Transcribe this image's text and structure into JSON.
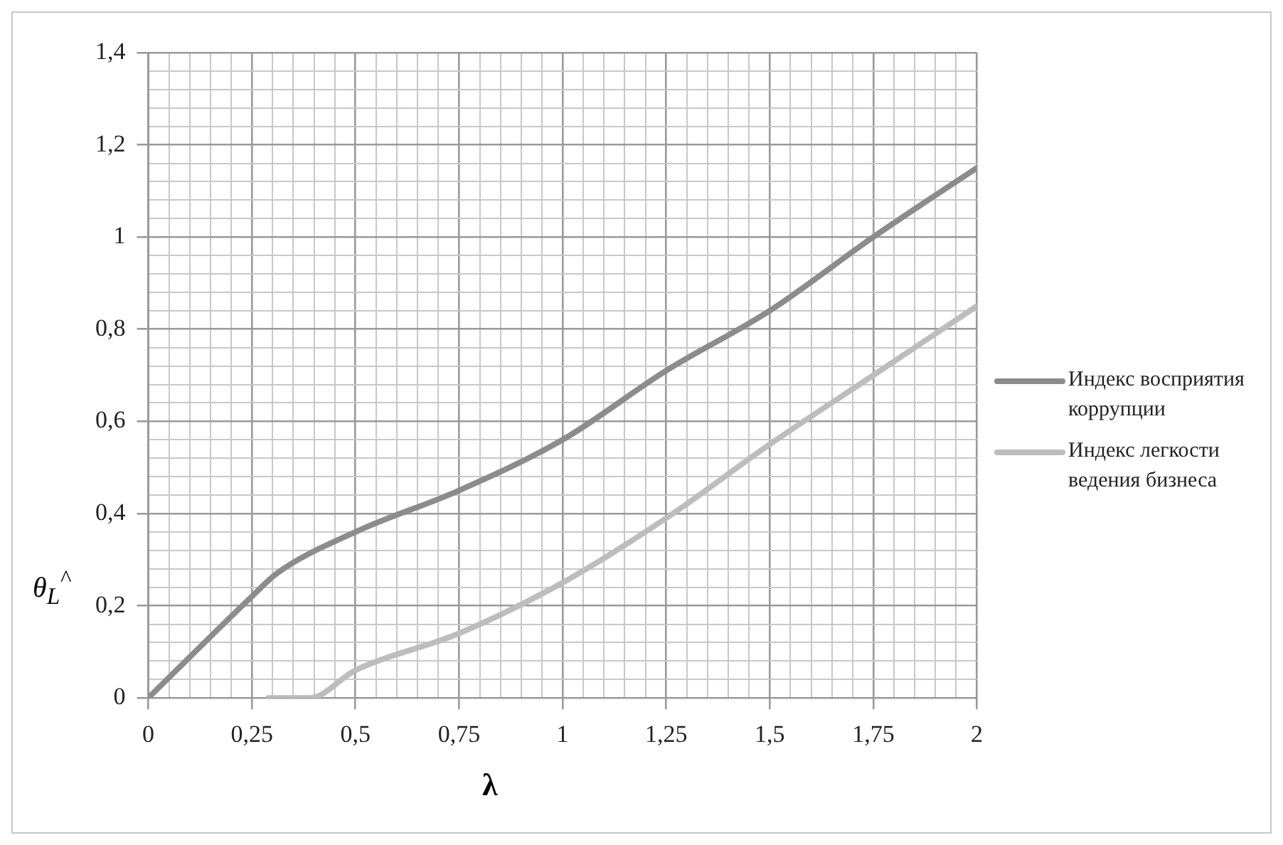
{
  "chart_data": {
    "type": "line",
    "xlabel": "λ",
    "ylabel": "θ$_{L}$$^{^}$",
    "xlim": [
      0,
      2
    ],
    "ylim": [
      0,
      1.4
    ],
    "xticks": [
      0,
      {
        "value": 0.05,
        "label": null
      },
      {
        "value": 0.1,
        "label": null
      },
      {
        "value": 0.15,
        "label": null
      },
      {
        "value": 0.2,
        "label": null
      },
      {
        "value": 0.25,
        "label": "0,25"
      },
      {
        "value": 0.3,
        "label": null
      },
      {
        "value": 0.35,
        "label": null
      },
      {
        "value": 0.4,
        "label": null
      },
      {
        "value": 0.45,
        "label": null
      },
      {
        "value": 0.5,
        "label": "0,5"
      },
      {
        "value": 0.55,
        "label": null
      },
      {
        "value": 0.6,
        "label": null
      },
      {
        "value": 0.65,
        "label": null
      },
      {
        "value": 0.7,
        "label": null
      },
      {
        "value": 0.75,
        "label": "0,75"
      },
      {
        "value": 0.8,
        "label": null
      },
      {
        "value": 0.85,
        "label": null
      },
      {
        "value": 0.9,
        "label": null
      },
      {
        "value": 0.95,
        "label": null
      },
      1,
      {
        "value": 1.05,
        "label": null
      },
      {
        "value": 1.1,
        "label": null
      },
      {
        "value": 1.15,
        "label": null
      },
      {
        "value": 1.2,
        "label": null
      },
      {
        "value": 1.25,
        "label": "1,25"
      },
      {
        "value": 1.3,
        "label": null
      },
      {
        "value": 1.35,
        "label": null
      },
      {
        "value": 1.4,
        "label": null
      },
      {
        "value": 1.45,
        "label": null
      },
      {
        "value": 1.5,
        "label": "1,5"
      },
      {
        "value": 1.55,
        "label": null
      },
      {
        "value": 1.6,
        "label": null
      },
      {
        "value": 1.65,
        "label": null
      },
      {
        "value": 1.7,
        "label": null
      },
      {
        "value": 1.75,
        "label": "1,75"
      },
      {
        "value": 1.8,
        "label": null
      },
      {
        "value": 1.85,
        "label": null
      },
      {
        "value": 1.9,
        "label": null
      },
      {
        "value": 1.95,
        "label": null
      },
      2
    ],
    "yticks": [
      0,
      {
        "value": 0.04,
        "label": null
      },
      {
        "value": 0.08,
        "label": null
      },
      {
        "value": 0.12,
        "label": null
      },
      {
        "value": 0.16,
        "label": null
      },
      {
        "value": 0.2,
        "label": "0,2"
      },
      {
        "value": 0.24,
        "label": null
      },
      {
        "value": 0.28,
        "label": null
      },
      {
        "value": 0.32,
        "label": null
      },
      {
        "value": 0.36,
        "label": null
      },
      {
        "value": 0.4,
        "label": "0,4"
      },
      {
        "value": 0.44,
        "label": null
      },
      {
        "value": 0.48,
        "label": null
      },
      {
        "value": 0.52,
        "label": null
      },
      {
        "value": 0.56,
        "label": null
      },
      {
        "value": 0.6,
        "label": "0,6"
      },
      {
        "value": 0.64,
        "label": null
      },
      {
        "value": 0.68,
        "label": null
      },
      {
        "value": 0.72,
        "label": null
      },
      {
        "value": 0.76,
        "label": null
      },
      {
        "value": 0.8,
        "label": "0,8"
      },
      {
        "value": 0.84,
        "label": null
      },
      {
        "value": 0.88,
        "label": null
      },
      {
        "value": 0.92,
        "label": null
      },
      {
        "value": 0.96,
        "label": null
      },
      1,
      {
        "value": 1.04,
        "label": null
      },
      {
        "value": 1.08,
        "label": null
      },
      {
        "value": 1.12,
        "label": null
      },
      {
        "value": 1.16,
        "label": null
      },
      {
        "value": 1.2,
        "label": "1,2"
      },
      {
        "value": 1.24,
        "label": null
      },
      {
        "value": 1.28,
        "label": null
      },
      {
        "value": 1.32,
        "label": null
      },
      {
        "value": 1.36,
        "label": null
      },
      {
        "value": 1.4,
        "label": "1,4"
      }
    ],
    "grid": true,
    "legend": "right",
    "marker": "none",
    "series": [
      {
        "name": "Индекс восприятия коррупции",
        "color": "#8c8c8e",
        "x": [
          0,
          0.25,
          0.31,
          0.5,
          0.75,
          1,
          1.25,
          1.5,
          1.75,
          2
        ],
        "values": [
          0,
          0.22,
          0.27,
          0.36,
          0.45,
          0.56,
          0.71,
          0.84,
          1.0,
          1.15
        ]
      },
      {
        "name": "Индекс легкости ведения бизнеса",
        "color": "#bdbdbd",
        "x": [
          0.29,
          0.39,
          0.5,
          0.75,
          1,
          1.25,
          1.5,
          1.75,
          2
        ],
        "values": [
          0,
          0,
          0.06,
          0.14,
          0.25,
          0.39,
          0.55,
          0.7,
          0.85
        ]
      }
    ]
  }
}
